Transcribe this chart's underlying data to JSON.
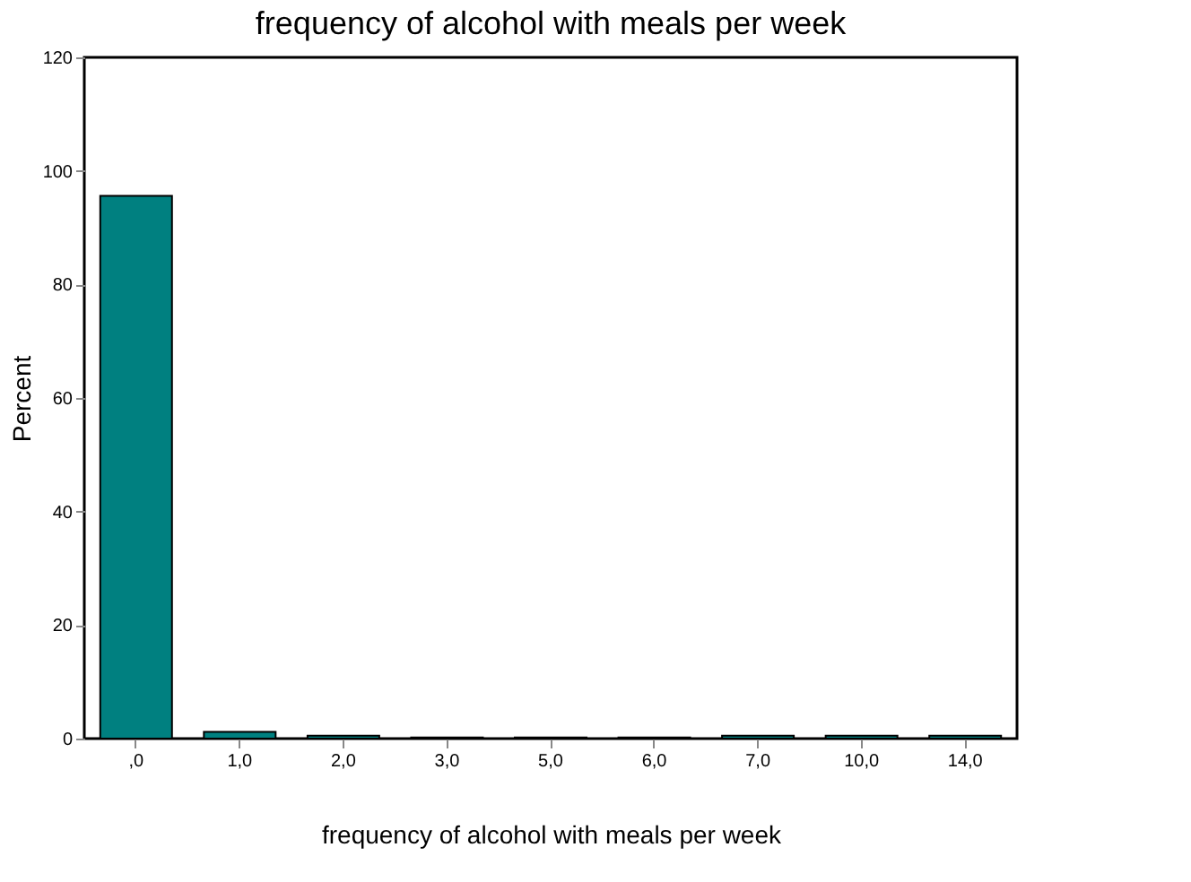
{
  "chart_data": {
    "type": "bar",
    "title": "frequency of alcohol with meals per week",
    "xlabel": "frequency of alcohol with meals per week",
    "ylabel": "Percent",
    "categories": [
      ",0",
      "1,0",
      "2,0",
      "3,0",
      "5,0",
      "6,0",
      "7,0",
      "10,0",
      "14,0"
    ],
    "values": [
      95.6,
      1.2,
      0.5,
      0.2,
      0.2,
      0.2,
      0.5,
      0.5,
      0.5
    ],
    "color": "#008080",
    "ylim": [
      0,
      120
    ],
    "yticks": [
      0,
      20,
      40,
      60,
      80,
      100,
      120
    ],
    "grid": false
  }
}
